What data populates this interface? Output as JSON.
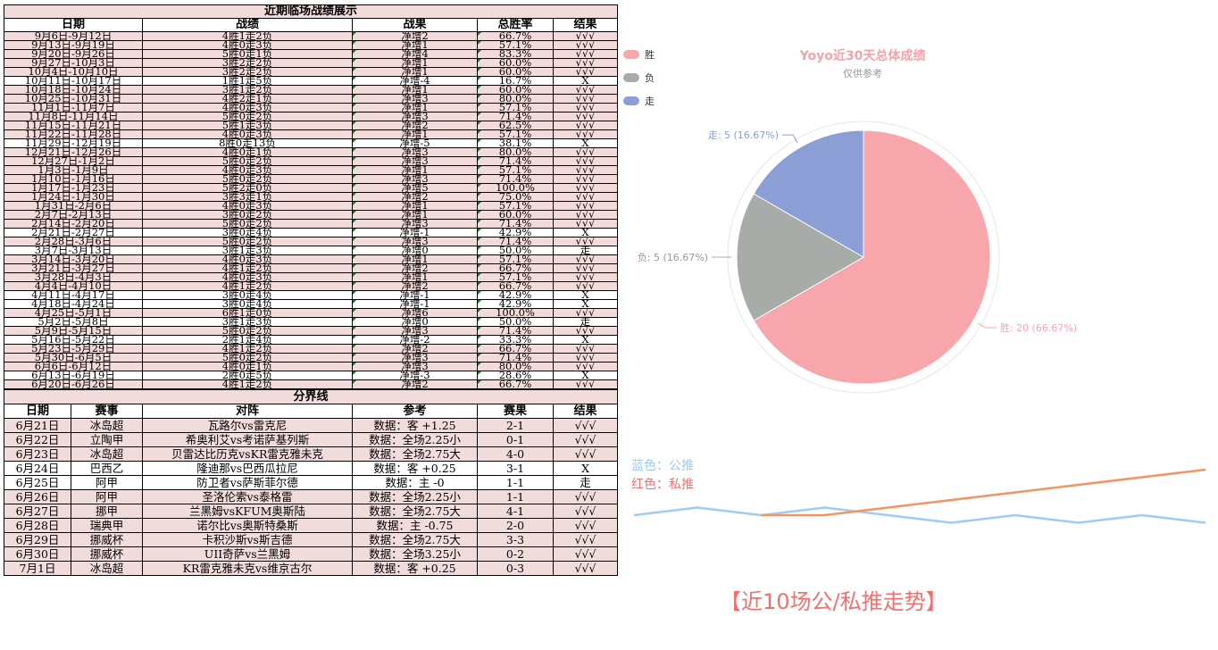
{
  "recent": {
    "title": "近期临场战绩展示",
    "headers": [
      "日期",
      "战绩",
      "战果",
      "总胜率",
      "结果"
    ],
    "rows": [
      [
        "9月6日-9月12日",
        "4胜1走2负",
        "净增2",
        "66.7%",
        "√√√"
      ],
      [
        "9月13日-9月19日",
        "4胜0走3负",
        "净增1",
        "57.1%",
        "√√√"
      ],
      [
        "9月20日-9月26日",
        "5胜0走1负",
        "净增4",
        "83.3%",
        "√√√"
      ],
      [
        "9月27日-10月3日",
        "3胜2走2负",
        "净增1",
        "60.0%",
        "√√√"
      ],
      [
        "10月4日-10月10日",
        "3胜2走2负",
        "净增1",
        "60.0%",
        "√√√"
      ],
      [
        "10月11日-10月17日",
        "1胜1走5负",
        "净增-4",
        "16.7%",
        "X"
      ],
      [
        "10月18日-10月24日",
        "3胜1走2负",
        "净增1",
        "60.0%",
        "√√√"
      ],
      [
        "10月25日-10月31日",
        "4胜2走1负",
        "净增3",
        "80.0%",
        "√√√"
      ],
      [
        "11月1日-11月7日",
        "4胜0走3负",
        "净增1",
        "57.1%",
        "√√√"
      ],
      [
        "11月8日-11月14日",
        "5胜0走2负",
        "净增3",
        "71.4%",
        "√√√"
      ],
      [
        "11月15日-11月21日",
        "5胜1走3负",
        "净增2",
        "62.5%",
        "√√√"
      ],
      [
        "11月22日-11月28日",
        "4胜0走3负",
        "净增1",
        "57.1%",
        "√√√"
      ],
      [
        "11月29日-12月19日",
        "8胜0走13负",
        "净增-5",
        "38.1%",
        "X"
      ],
      [
        "12月21日-12月26日",
        "4胜0走1负",
        "净增3",
        "80.0%",
        "√√√"
      ],
      [
        "12月27日-1月2日",
        "5胜0走2负",
        "净增3",
        "71.4%",
        "√√√"
      ],
      [
        "1月3日-1月9日",
        "4胜0走3负",
        "净增1",
        "57.1%",
        "√√√"
      ],
      [
        "1月10日-1月16日",
        "5胜0走2负",
        "净增3",
        "71.4%",
        "√√√"
      ],
      [
        "1月17日-1月23日",
        "5胜2走0负",
        "净增5",
        "100.0%",
        "√√√"
      ],
      [
        "1月24日-1月30日",
        "3胜3走1负",
        "净增2",
        "75.0%",
        "√√√"
      ],
      [
        "1月31日-2月6日",
        "4胜0走3负",
        "净增1",
        "57.1%",
        "√√√"
      ],
      [
        "2月7日-2月13日",
        "3胜0走2负",
        "净增1",
        "60.0%",
        "√√√"
      ],
      [
        "2月14日-2月20日",
        "5胜0走2负",
        "净增3",
        "71.4%",
        "√√√"
      ],
      [
        "2月21日-2月27日",
        "3胜0走4负",
        "净增-1",
        "42.9%",
        "X"
      ],
      [
        "2月28日-3月6日",
        "5胜0走2负",
        "净增3",
        "71.4%",
        "√√√"
      ],
      [
        "3月7日-3月13日",
        "3胜1走3负",
        "净增0",
        "50.0%",
        "走"
      ],
      [
        "3月14日-3月20日",
        "4胜0走3负",
        "净增1",
        "57.1%",
        "√√√"
      ],
      [
        "3月21日-3月27日",
        "4胜1走2负",
        "净增2",
        "66.7%",
        "√√√"
      ],
      [
        "3月28日-4月3日",
        "4胜0走3负",
        "净增1",
        "57.1%",
        "√√√"
      ],
      [
        "4月4日-4月10日",
        "4胜1走2负",
        "净增2",
        "66.7%",
        "√√√"
      ],
      [
        "4月11日-4月17日",
        "3胜0走4负",
        "净增-1",
        "42.9%",
        "X"
      ],
      [
        "4月18日-4月24日",
        "3胜0走4负",
        "净增-1",
        "42.9%",
        "X"
      ],
      [
        "4月25日-5月1日",
        "6胜1走0负",
        "净增6",
        "100.0%",
        "√√√"
      ],
      [
        "5月2日-5月8日",
        "3胜1走3负",
        "净增0",
        "50.0%",
        "走"
      ],
      [
        "5月9日-5月15日",
        "5胜0走2负",
        "净增3",
        "71.4%",
        "√√√"
      ],
      [
        "5月16日-5月22日",
        "2胜1走4负",
        "净增-2",
        "33.3%",
        "X"
      ],
      [
        "5月23日-5月29日",
        "4胜1走2负",
        "净增2",
        "66.7%",
        "√√√"
      ],
      [
        "5月30日-6月5日",
        "5胜0走2负",
        "净增3",
        "71.4%",
        "√√√"
      ],
      [
        "6月6日-6月12日",
        "4胜0走1负",
        "净增3",
        "80.0%",
        "√√√"
      ],
      [
        "6月13日-6月19日",
        "2胜0走5负",
        "净增-3",
        "28.6%",
        "X"
      ],
      [
        "6月20日-6月26日",
        "4胜1走2负",
        "净增2",
        "66.7%",
        "√√√"
      ]
    ]
  },
  "divider": {
    "title": "分界线",
    "headers": [
      "日期",
      "赛事",
      "对阵",
      "参考",
      "赛果",
      "结果"
    ],
    "rows": [
      [
        "6月21日",
        "冰岛超",
        "瓦路尔vs雷克尼",
        "数据：客 +1.25",
        "2-1",
        "√√√"
      ],
      [
        "6月22日",
        "立陶甲",
        "希奥利艾vs考诺萨基列斯",
        "数据：全场2.25小",
        "0-1",
        "√√√"
      ],
      [
        "6月23日",
        "冰岛超",
        "贝雷达比历克vsKR雷克雅未克",
        "数据：全场2.75大",
        "4-0",
        "√√√"
      ],
      [
        "6月24日",
        "巴西乙",
        "隆迪那vs巴西瓜拉尼",
        "数据：客 +0.25",
        "3-1",
        "X"
      ],
      [
        "6月25日",
        "阿甲",
        "防卫者vs萨斯菲尔德",
        "数据：主 -0",
        "1-1",
        "走"
      ],
      [
        "6月26日",
        "阿甲",
        "圣洛伦索vs泰格雷",
        "数据：全场2.25小",
        "1-1",
        "√√√"
      ],
      [
        "6月27日",
        "挪甲",
        "兰黑姆vsKFUM奥斯陆",
        "数据：全场2.75大",
        "4-1",
        "√√√"
      ],
      [
        "6月28日",
        "瑞典甲",
        "诺尔比vs奥斯特桑斯",
        "数据：主 -0.75",
        "2-0",
        "√√√"
      ],
      [
        "6月29日",
        "挪威杯",
        "卡积沙斯vs斯吉德",
        "数据：全场2.75大",
        "3-3",
        "√√√"
      ],
      [
        "6月30日",
        "挪威杯",
        "UII奇萨vs兰黑姆",
        "数据：全场3.25小",
        "0-2",
        "√√√"
      ],
      [
        "7月1日",
        "冰岛超",
        "KR雷克雅未克vs维京古尔",
        "数据：客 +0.25",
        "0-3",
        "√√√"
      ]
    ]
  },
  "pie": {
    "title": "Yoyo近30天总体成绩",
    "subtitle": "仅供参考",
    "legend": [
      {
        "label": "胜",
        "color": "#f7a6ac"
      },
      {
        "label": "负",
        "color": "#a8aca8"
      },
      {
        "label": "走",
        "color": "#8b9ed6"
      }
    ],
    "labels": {
      "win": "胜: 20 (66.67%)",
      "loss": "负: 5 (16.67%)",
      "draw": "走: 5 (16.67%)"
    }
  },
  "trend": {
    "legend_public": "蓝色：公推",
    "legend_private": "红色：私推",
    "caption": "【近10场公/私推走势】",
    "public_color": "#9fcdf0",
    "private_color": "#f49461"
  },
  "chart_data": [
    {
      "type": "pie",
      "title": "Yoyo近30天总体成绩",
      "subtitle": "仅供参考",
      "categories": [
        "胜",
        "负",
        "走"
      ],
      "values": [
        20,
        5,
        5
      ],
      "legend": "top-left"
    },
    {
      "type": "line",
      "title": "【近10场公/私推走势】",
      "x": [
        1,
        2,
        3,
        4,
        5,
        6,
        7,
        8,
        9,
        10
      ],
      "series": [
        {
          "name": "蓝色：公推",
          "values": [
            0,
            1,
            0,
            1,
            0,
            -1,
            0,
            -1,
            0,
            -1
          ]
        },
        {
          "name": "红色：私推",
          "values": [
            null,
            null,
            0,
            0,
            1,
            2,
            3,
            4,
            5,
            6
          ]
        }
      ]
    }
  ]
}
